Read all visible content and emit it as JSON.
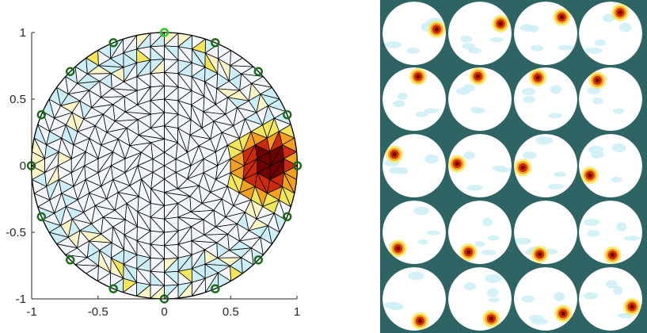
{
  "left_panel": {
    "x_ticks": [
      "-1",
      "-0.5",
      "0",
      "0.5",
      "1"
    ],
    "y_ticks": [
      "1",
      "0.5",
      "0",
      "-0.5",
      "-1"
    ],
    "x_limits": [
      -1,
      1
    ],
    "y_limits": [
      -1,
      1
    ],
    "electrode_count": 16,
    "active_electrode_index": 0,
    "mesh_line_color": "#000000",
    "electrode_color": "#1a6b1a",
    "active_electrode_color": "#22cc22",
    "inclusion_center": [
      0.78,
      0.0
    ],
    "inclusion_radius": 0.22,
    "colormap": [
      "#f3f7fb",
      "#cdeef7",
      "#fbf5c8",
      "#f4e65a",
      "#f2a020",
      "#cc2a0a",
      "#6e0000"
    ]
  },
  "right_panel": {
    "rows": 5,
    "cols": 4,
    "background_color": "#2f6464",
    "hotspot_angles_deg": [
      10,
      25,
      45,
      65,
      80,
      95,
      110,
      125,
      150,
      175,
      185,
      205,
      225,
      240,
      255,
      275,
      285,
      300,
      320,
      340
    ]
  }
}
